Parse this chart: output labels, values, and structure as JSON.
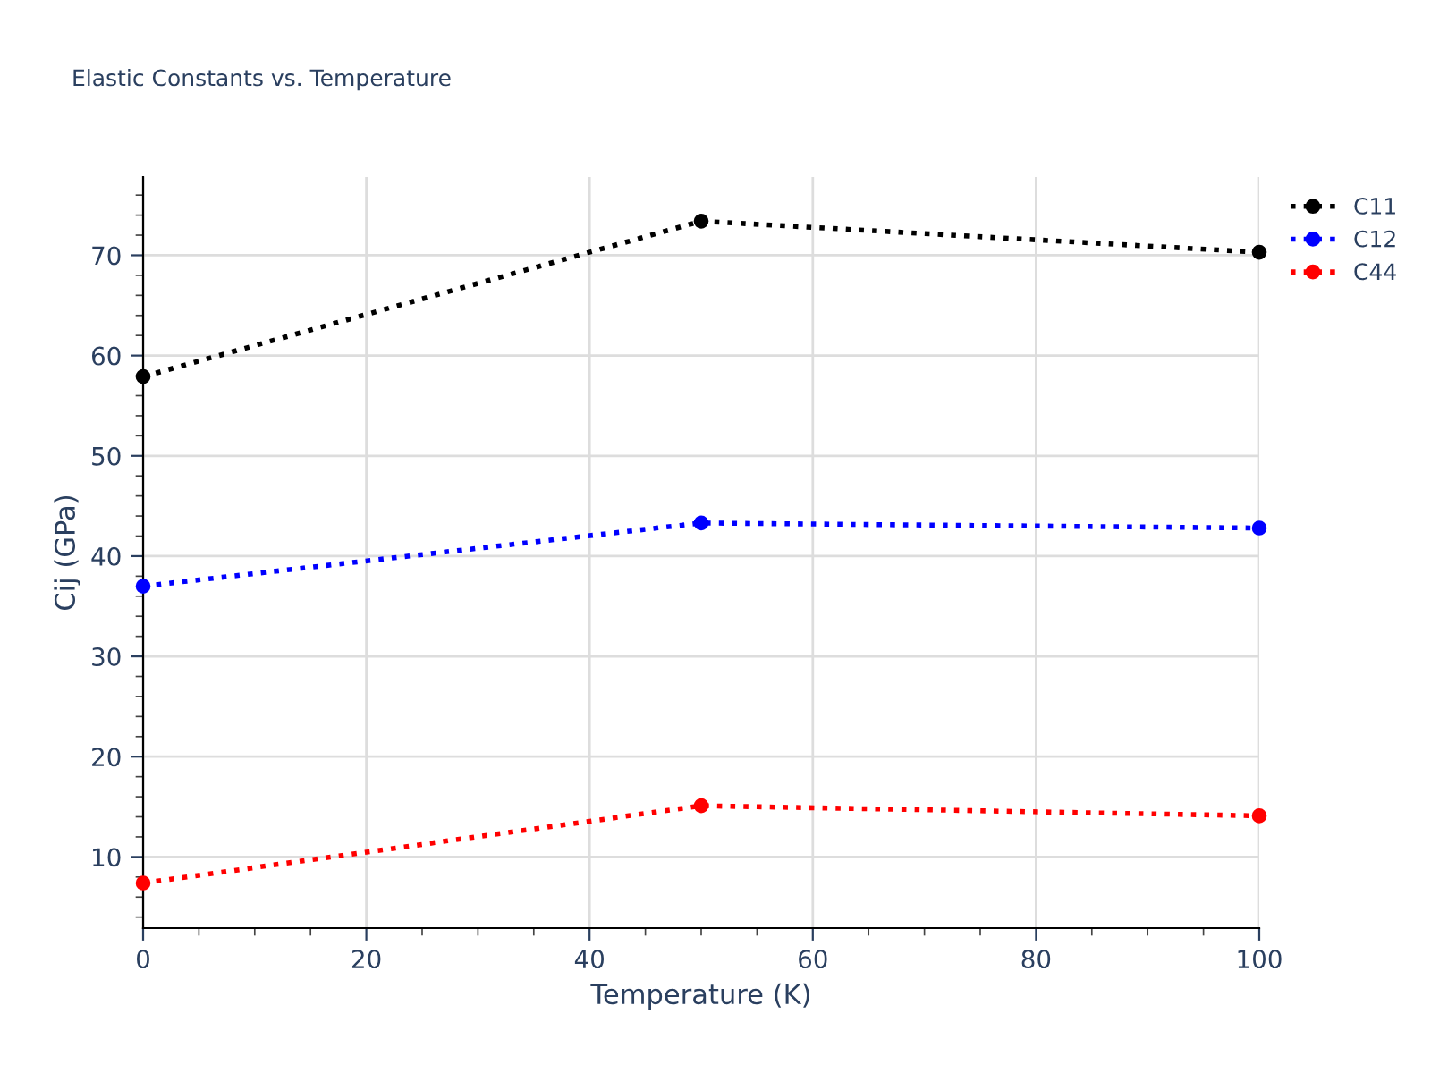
{
  "chart_data": {
    "type": "line",
    "title": "Elastic Constants vs. Temperature",
    "xlabel": "Temperature (K)",
    "ylabel": "Cij (GPa)",
    "x": [
      0,
      50,
      100
    ],
    "series": [
      {
        "name": "C11",
        "color": "#000000",
        "values": [
          57.9,
          73.4,
          70.3
        ]
      },
      {
        "name": "C12",
        "color": "#0000ff",
        "values": [
          37.0,
          43.3,
          42.8
        ]
      },
      {
        "name": "C44",
        "color": "#ff0000",
        "values": [
          7.4,
          15.1,
          14.1
        ]
      }
    ],
    "xlim": [
      0,
      100
    ],
    "xticks": [
      0,
      20,
      40,
      60,
      80,
      100
    ],
    "ylim": [
      2.9,
      77.8
    ],
    "yticks": [
      10,
      20,
      30,
      40,
      50,
      60,
      70
    ],
    "grid": true,
    "legend": "top right",
    "marker": "circle",
    "line_style": "dotted"
  }
}
